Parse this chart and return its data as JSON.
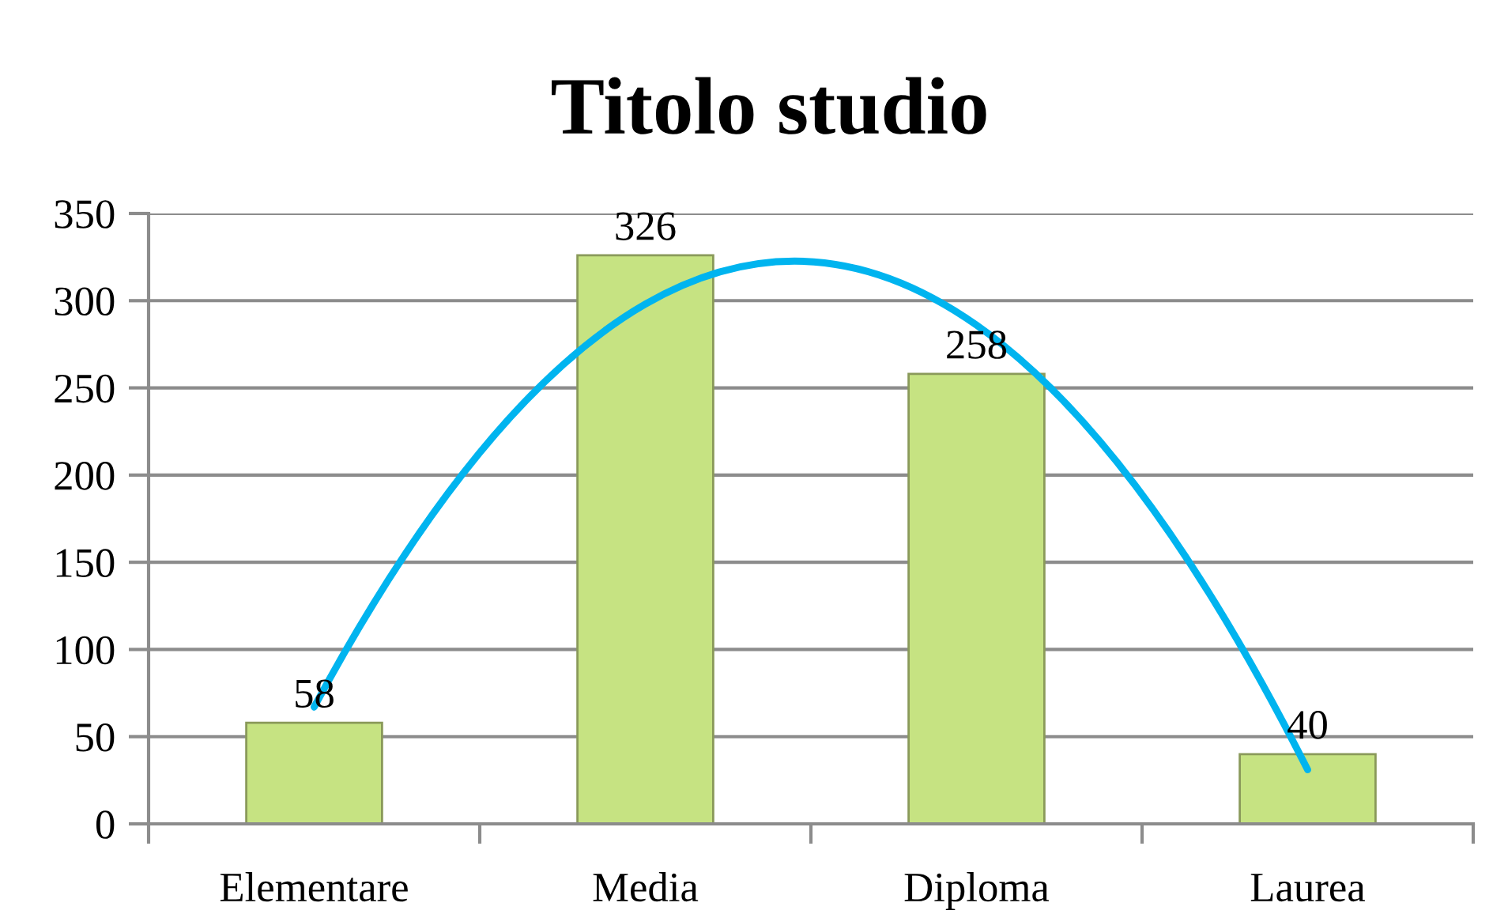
{
  "chart_data": {
    "type": "bar",
    "title": "Titolo studio",
    "categories": [
      "Elementare",
      "Media",
      "Diploma",
      "Laurea"
    ],
    "series": [
      {
        "color": "#c6e382",
        "values": [
          58,
          326,
          258,
          40
        ],
        "value_labels": [
          "58",
          "326",
          "258",
          "40"
        ]
      },
      {
        "type": "line",
        "color": "#00b4ef",
        "values": [
          67,
          298,
          286,
          31
        ]
      }
    ],
    "ylim": [
      0,
      350
    ],
    "yticks": [
      0,
      50,
      100,
      150,
      200,
      250,
      300,
      350
    ],
    "grid": "y"
  }
}
